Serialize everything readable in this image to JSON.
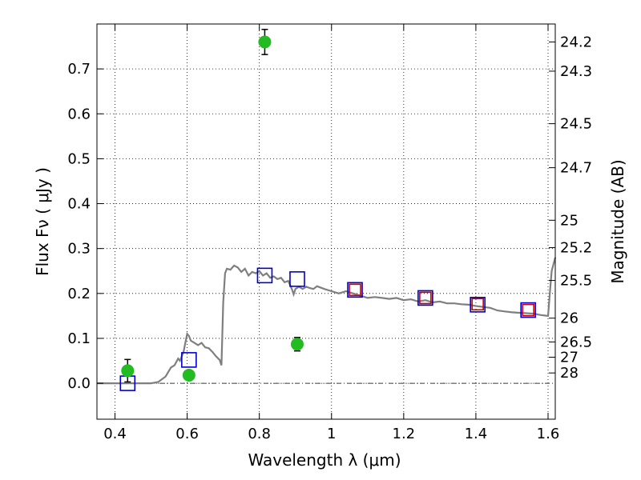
{
  "chart_data": {
    "type": "scatter",
    "xlabel": "Wavelength  λ (μm)",
    "ylabel": "Flux  Fν  ( μJy )",
    "ylabel_right": "Magnitude (AB)",
    "xlim": [
      0.35,
      1.62
    ],
    "ylim": [
      -0.08,
      0.8
    ],
    "grid": true,
    "x_ticks": [
      {
        "value": 0.4,
        "label": "0.4"
      },
      {
        "value": 0.6,
        "label": "0.6"
      },
      {
        "value": 0.8,
        "label": "0.8"
      },
      {
        "value": 1.0,
        "label": "1"
      },
      {
        "value": 1.2,
        "label": "1.2"
      },
      {
        "value": 1.4,
        "label": "1.4"
      },
      {
        "value": 1.6,
        "label": "1.6"
      }
    ],
    "y_ticks": [
      {
        "value": 0.0,
        "label": "0.0"
      },
      {
        "value": 0.1,
        "label": "0.1"
      },
      {
        "value": 0.2,
        "label": "0.2"
      },
      {
        "value": 0.3,
        "label": "0.3"
      },
      {
        "value": 0.4,
        "label": "0.4"
      },
      {
        "value": 0.5,
        "label": "0.5"
      },
      {
        "value": 0.6,
        "label": "0.6"
      },
      {
        "value": 0.7,
        "label": "0.7"
      }
    ],
    "right_ticks": [
      {
        "flux": 0.76,
        "label": "24.2"
      },
      {
        "flux": 0.695,
        "label": "24.3"
      },
      {
        "flux": 0.578,
        "label": "24.5"
      },
      {
        "flux": 0.48,
        "label": "24.7"
      },
      {
        "flux": 0.363,
        "label": "25"
      },
      {
        "flux": 0.302,
        "label": "25.2"
      },
      {
        "flux": 0.229,
        "label": "25.5"
      },
      {
        "flux": 0.145,
        "label": "26"
      },
      {
        "flux": 0.092,
        "label": "26.5"
      },
      {
        "flux": 0.058,
        "label": "27"
      },
      {
        "flux": 0.023,
        "label": "28"
      }
    ],
    "model_sed": {
      "color": "#7f7f7f",
      "x": [
        0.35,
        0.5,
        0.52,
        0.54,
        0.555,
        0.565,
        0.575,
        0.58,
        0.585,
        0.59,
        0.595,
        0.6,
        0.605,
        0.61,
        0.62,
        0.63,
        0.64,
        0.65,
        0.66,
        0.67,
        0.68,
        0.69,
        0.695,
        0.7,
        0.705,
        0.71,
        0.72,
        0.73,
        0.74,
        0.75,
        0.76,
        0.77,
        0.78,
        0.79,
        0.8,
        0.81,
        0.82,
        0.83,
        0.84,
        0.85,
        0.86,
        0.87,
        0.88,
        0.89,
        0.895,
        0.9,
        0.91,
        0.92,
        0.93,
        0.94,
        0.95,
        0.96,
        0.98,
        1.0,
        1.02,
        1.04,
        1.06,
        1.08,
        1.1,
        1.12,
        1.14,
        1.16,
        1.18,
        1.2,
        1.22,
        1.24,
        1.26,
        1.28,
        1.3,
        1.32,
        1.34,
        1.36,
        1.38,
        1.4,
        1.42,
        1.44,
        1.46,
        1.48,
        1.5,
        1.52,
        1.54,
        1.56,
        1.58,
        1.6,
        1.605,
        1.61,
        1.62
      ],
      "y": [
        0.0,
        0.0,
        0.003,
        0.015,
        0.035,
        0.04,
        0.055,
        0.05,
        0.06,
        0.07,
        0.09,
        0.11,
        0.105,
        0.095,
        0.09,
        0.085,
        0.09,
        0.08,
        0.078,
        0.07,
        0.06,
        0.052,
        0.04,
        0.18,
        0.245,
        0.255,
        0.253,
        0.262,
        0.258,
        0.248,
        0.255,
        0.24,
        0.248,
        0.245,
        0.25,
        0.24,
        0.245,
        0.235,
        0.238,
        0.232,
        0.235,
        0.225,
        0.228,
        0.21,
        0.198,
        0.21,
        0.215,
        0.21,
        0.215,
        0.212,
        0.21,
        0.216,
        0.21,
        0.205,
        0.2,
        0.205,
        0.2,
        0.195,
        0.19,
        0.192,
        0.19,
        0.188,
        0.19,
        0.185,
        0.187,
        0.182,
        0.185,
        0.18,
        0.182,
        0.178,
        0.178,
        0.176,
        0.175,
        0.172,
        0.17,
        0.168,
        0.162,
        0.16,
        0.158,
        0.157,
        0.156,
        0.155,
        0.152,
        0.15,
        0.2,
        0.25,
        0.28
      ]
    },
    "series": [
      {
        "marker": "square-open",
        "color": "#0000cc",
        "x": [
          0.435,
          0.605,
          0.815,
          0.905,
          1.065,
          1.26,
          1.405,
          1.545
        ],
        "y": [
          0.0,
          0.052,
          0.24,
          0.232,
          0.208,
          0.19,
          0.175,
          0.163
        ]
      },
      {
        "marker": "square-open",
        "color": "#cc0000",
        "x": [
          1.065,
          1.26,
          1.405,
          1.545
        ],
        "y": [
          0.208,
          0.19,
          0.176,
          0.163
        ]
      },
      {
        "marker": "circle-filled",
        "color": "#22bb22",
        "x": [
          0.435,
          0.605,
          0.815,
          0.905
        ],
        "y": [
          0.028,
          0.018,
          0.76,
          0.087
        ],
        "err": [
          0.025,
          0.0,
          0.028,
          0.015
        ]
      }
    ]
  }
}
